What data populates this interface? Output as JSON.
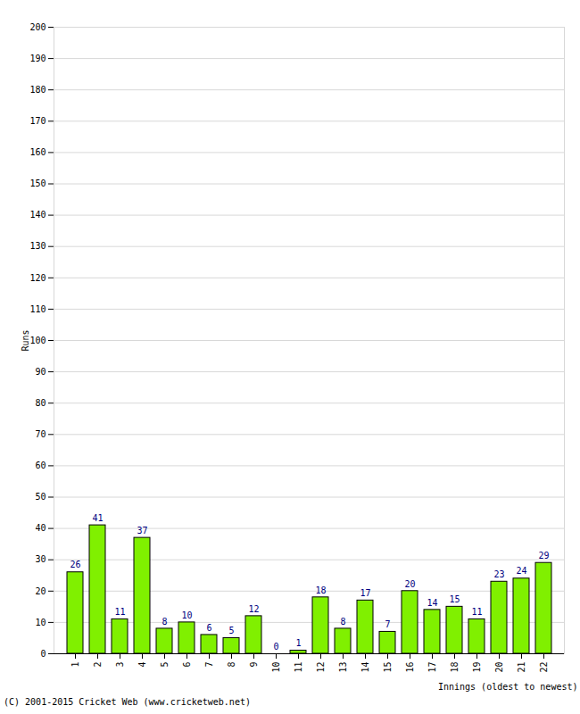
{
  "chart_data": {
    "type": "bar",
    "categories": [
      "1",
      "2",
      "3",
      "4",
      "5",
      "6",
      "7",
      "8",
      "9",
      "10",
      "11",
      "12",
      "13",
      "14",
      "15",
      "16",
      "17",
      "18",
      "19",
      "20",
      "21",
      "22"
    ],
    "values": [
      26,
      41,
      11,
      37,
      8,
      10,
      6,
      5,
      12,
      0,
      1,
      18,
      8,
      17,
      7,
      20,
      14,
      15,
      11,
      23,
      24,
      29
    ],
    "color": "#80f000",
    "x_label": "Innings (oldest to newest)",
    "y_label": "Runs",
    "caption": "(C) 2001-2015 Cricket Web (www.cricketweb.net)",
    "ylim": [
      0,
      200
    ],
    "yticks": [
      0,
      10,
      20,
      30,
      40,
      50,
      60,
      70,
      80,
      90,
      100,
      110,
      120,
      130,
      140,
      150,
      160,
      170,
      180,
      190,
      200
    ],
    "grid": true,
    "data_labels": true
  }
}
